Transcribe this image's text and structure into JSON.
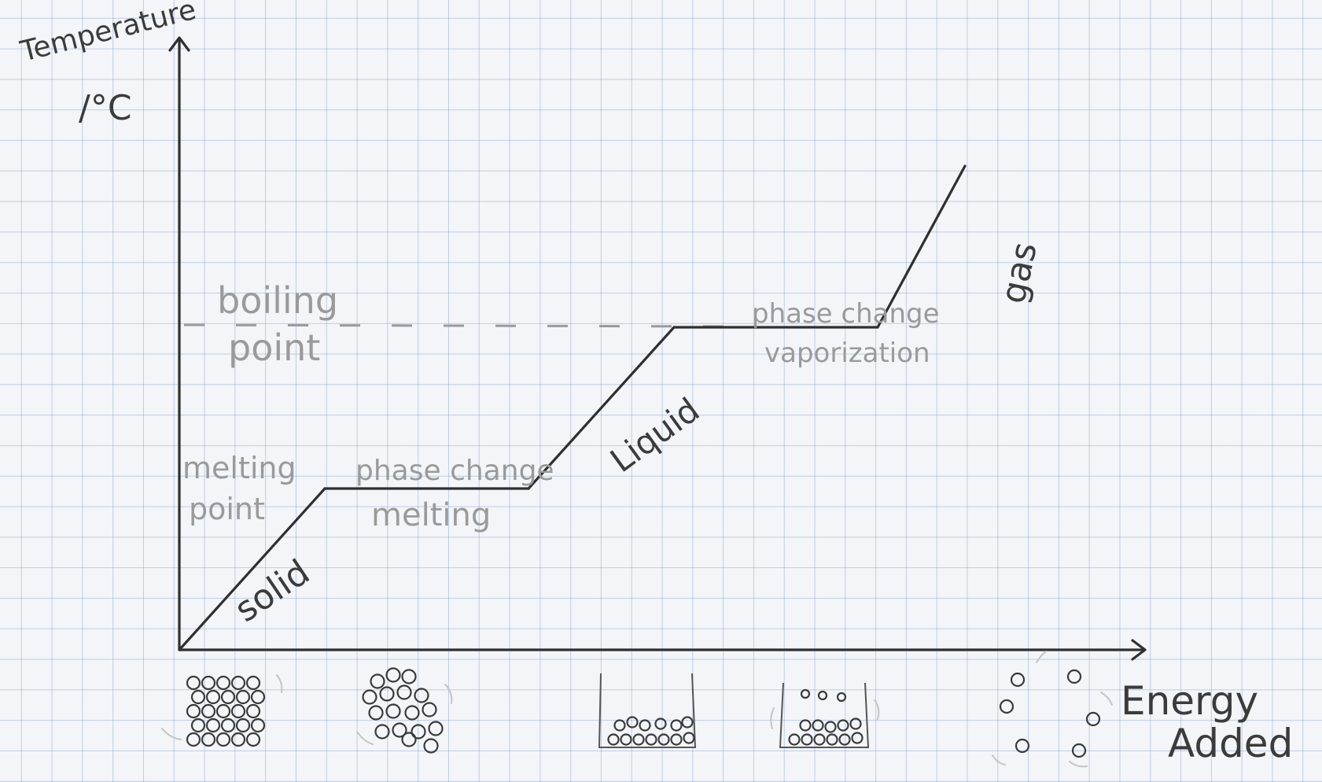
{
  "chart_data": {
    "type": "line",
    "title": "",
    "ylabel": "Temperature /°C",
    "xlabel": "Energy Added",
    "reference_lines": {
      "boiling_point": "boiling point",
      "melting_point": "melting point"
    },
    "segments": [
      {
        "label": "solid",
        "phase": "solid"
      },
      {
        "label": "phase change melting",
        "line1": "phase change",
        "line2": "melting"
      },
      {
        "label": "Liquid",
        "phase": "liquid"
      },
      {
        "label": "phase change vaporization",
        "line1": "phase change",
        "line2": "vaporization"
      },
      {
        "label": "gas",
        "phase": "gas"
      }
    ],
    "x": [
      0,
      2,
      4.8,
      6.8,
      9.6,
      10.8
    ],
    "y": [
      0,
      2,
      2,
      4,
      4,
      6
    ],
    "grid": true,
    "legend": "none"
  },
  "labels": {
    "y_line1": "Temperature",
    "y_line2": "/°C",
    "x_line1": "Energy",
    "x_line2": "Added",
    "boiling_line1": "boiling",
    "boiling_line2": "point",
    "melting_line1": "melting",
    "melting_line2": "point",
    "solid": "solid",
    "melt_pc": "phase change",
    "melt_name": "melting",
    "liquid": "Liquid",
    "vap_pc": "phase change",
    "vap_name": "vaporization",
    "gas": "gas"
  },
  "particle_diagrams": [
    "solid-particles-icon",
    "melting-particles-icon",
    "liquid-particles-icon",
    "vaporizing-particles-icon",
    "gas-particles-icon"
  ],
  "colors": {
    "grid": "#7696c4",
    "ink_dark": "#2f2f2f",
    "ink_gray": "#9a9a9a",
    "paper": "#f3f5f8"
  }
}
